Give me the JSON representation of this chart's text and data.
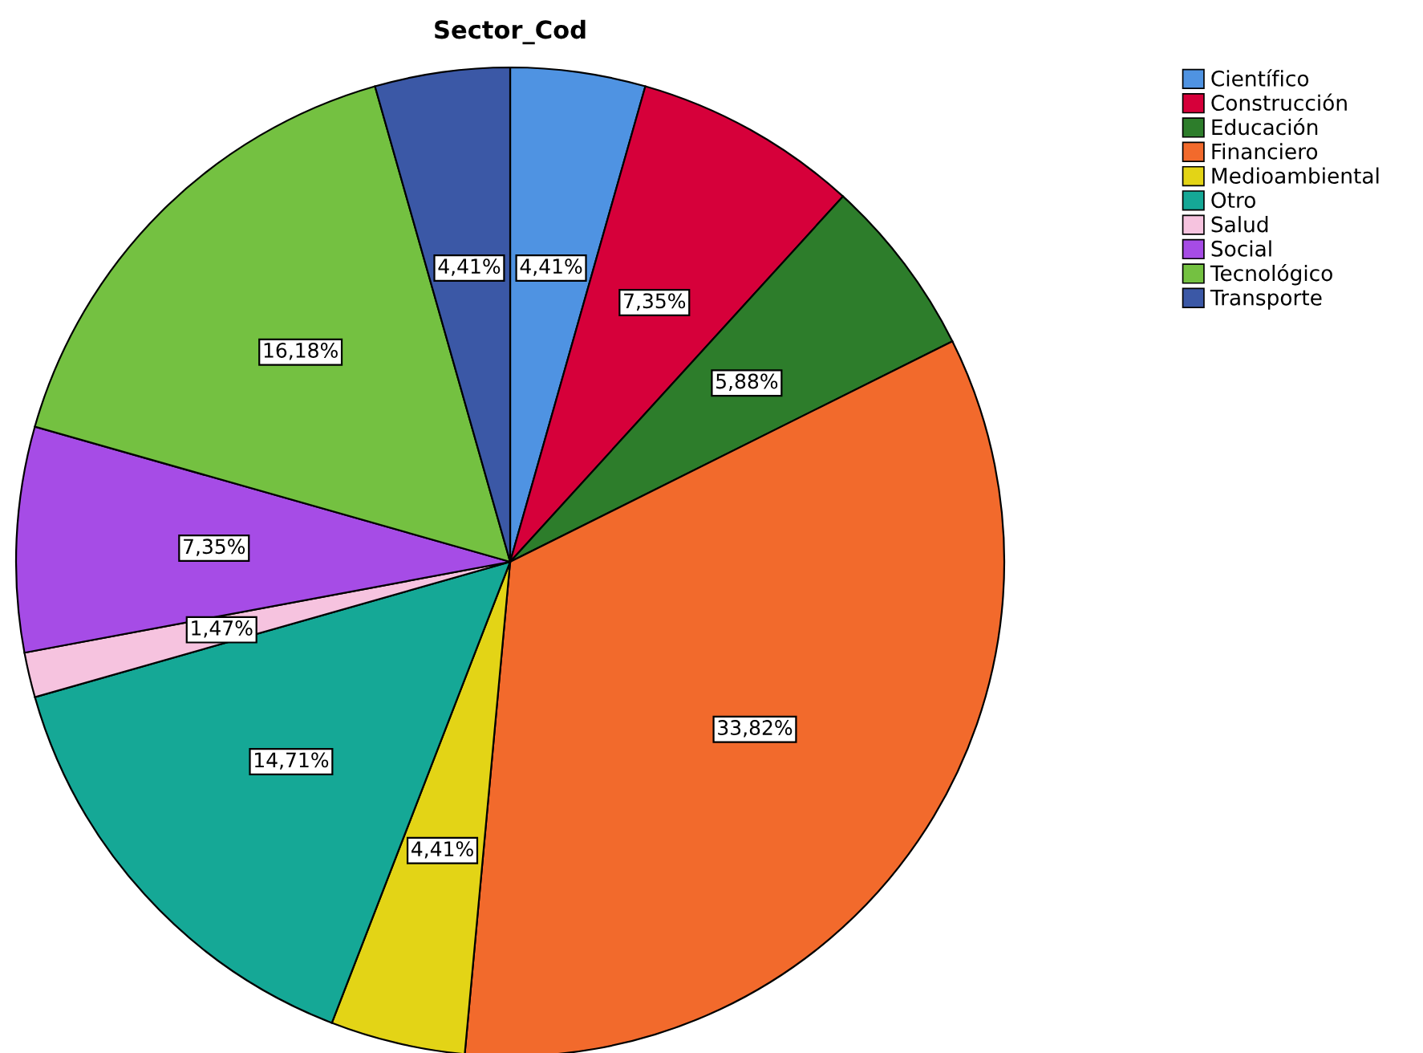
{
  "chart_data": {
    "type": "pie",
    "title": "Sector_Cod",
    "categories": [
      "Científico",
      "Construcción",
      "Educación",
      "Financiero",
      "Medioambiental",
      "Otro",
      "Salud",
      "Social",
      "Tecnológico",
      "Transporte"
    ],
    "values": [
      4.41,
      7.35,
      5.88,
      33.82,
      4.41,
      14.71,
      1.47,
      7.35,
      16.18,
      4.41
    ],
    "value_labels": [
      "4,41%",
      "7,35%",
      "5,88%",
      "33,82%",
      "4,41%",
      "14,71%",
      "1,47%",
      "7,35%",
      "16,18%",
      "4,41%"
    ],
    "colors": [
      "#4f93e2",
      "#d6003a",
      "#2d7d2b",
      "#f26a2c",
      "#e3d416",
      "#15a896",
      "#f6c3df",
      "#a64ce6",
      "#74c141",
      "#3b58a6"
    ],
    "legend": "top right"
  }
}
